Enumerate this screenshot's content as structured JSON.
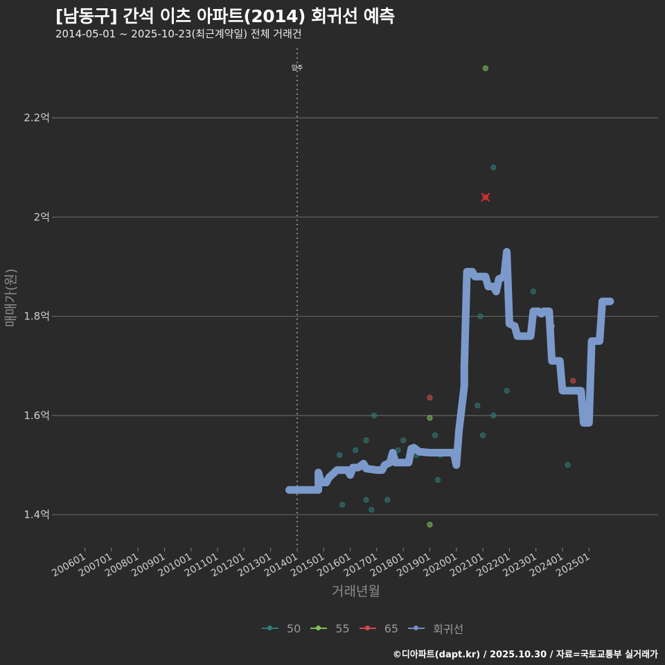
{
  "header": {
    "title": "[남동구] 간석 이츠 아파트(2014) 회귀선 예측",
    "subtitle": "2014-05-01 ~ 2025-10-23(최근계약일) 전체 거래건"
  },
  "annotation": {
    "label": "입주",
    "x_month": "201405"
  },
  "legend": [
    {
      "label": "50",
      "color": "#2f7c78"
    },
    {
      "label": "55",
      "color": "#7fbf5f"
    },
    {
      "label": "65",
      "color": "#d24a4a"
    },
    {
      "label": "회귀선",
      "color": "#6f8fbf"
    }
  ],
  "caption": "©디아파트(dapt.kr) / 2025.10.30 / 자료=국토교통부 실거래가",
  "chart_data": {
    "type": "scatter",
    "title": "[남동구] 간석 이츠 아파트(2014) 회귀선 예측",
    "subtitle": "2014-05-01 ~ 2025-10-23(최근계약일) 전체 거래건",
    "xlabel": "거래년월",
    "ylabel": "매매가(원)",
    "x_ticks": [
      "200601",
      "200701",
      "200801",
      "200901",
      "201001",
      "201101",
      "201201",
      "201301",
      "201401",
      "201501",
      "201601",
      "201701",
      "201801",
      "201901",
      "202001",
      "202101",
      "202201",
      "202301",
      "202401",
      "202501"
    ],
    "y_ticks": [
      "1.4억",
      "1.6억",
      "1.8억",
      "2억",
      "2.2억"
    ],
    "y_tick_values": [
      1.4,
      1.6,
      1.8,
      2.0,
      2.2
    ],
    "ylim": [
      1.34,
      2.32
    ],
    "grid": "horizontal",
    "legend_position": "bottom",
    "vline": {
      "x": "2014.33",
      "label": "입주"
    },
    "series": [
      {
        "name": "50",
        "type": "scatter",
        "color": "#2f7c78",
        "points": [
          [
            2015.6,
            1.52
          ],
          [
            2015.7,
            1.42
          ],
          [
            2016.2,
            1.53
          ],
          [
            2016.6,
            1.55
          ],
          [
            2016.6,
            1.43
          ],
          [
            2016.8,
            1.41
          ],
          [
            2016.9,
            1.6
          ],
          [
            2017.4,
            1.43
          ],
          [
            2017.8,
            1.53
          ],
          [
            2018.0,
            1.55
          ],
          [
            2018.5,
            1.52
          ],
          [
            2019.2,
            1.56
          ],
          [
            2019.3,
            1.47
          ],
          [
            2019.4,
            1.52
          ],
          [
            2020.8,
            1.62
          ],
          [
            2020.9,
            1.8
          ],
          [
            2021.0,
            1.56
          ],
          [
            2021.4,
            2.1
          ],
          [
            2021.4,
            1.6
          ],
          [
            2021.9,
            1.65
          ],
          [
            2022.9,
            1.85
          ],
          [
            2024.2,
            1.5
          ]
        ]
      },
      {
        "name": "55",
        "type": "scatter",
        "color": "#7fbf5f",
        "points": [
          [
            2019.0,
            1.595
          ],
          [
            2019.0,
            1.38
          ],
          [
            2021.1,
            2.3
          ],
          [
            2023.6,
            1.78
          ]
        ]
      },
      {
        "name": "65",
        "type": "scatter",
        "color": "#d24a4a",
        "points": [
          [
            2019.0,
            1.636
          ],
          [
            2021.1,
            2.04
          ],
          [
            2024.4,
            1.67
          ]
        ]
      },
      {
        "name": "회귀선",
        "type": "line",
        "color": "#7b9acb",
        "points": [
          [
            2013.7,
            1.45
          ],
          [
            2014.5,
            1.45
          ],
          [
            2014.8,
            1.45
          ],
          [
            2014.8,
            1.485
          ],
          [
            2014.9,
            1.465
          ],
          [
            2015.1,
            1.465
          ],
          [
            2015.2,
            1.475
          ],
          [
            2015.5,
            1.49
          ],
          [
            2015.9,
            1.49
          ],
          [
            2016.0,
            1.48
          ],
          [
            2016.1,
            1.495
          ],
          [
            2016.3,
            1.495
          ],
          [
            2016.5,
            1.503
          ],
          [
            2016.6,
            1.493
          ],
          [
            2017.0,
            1.49
          ],
          [
            2017.2,
            1.49
          ],
          [
            2017.3,
            1.5
          ],
          [
            2017.5,
            1.505
          ],
          [
            2017.6,
            1.525
          ],
          [
            2017.7,
            1.505
          ],
          [
            2018.2,
            1.505
          ],
          [
            2018.3,
            1.533
          ],
          [
            2018.4,
            1.535
          ],
          [
            2018.6,
            1.527
          ],
          [
            2019.0,
            1.525
          ],
          [
            2019.9,
            1.525
          ],
          [
            2020.0,
            1.5
          ],
          [
            2020.1,
            1.57
          ],
          [
            2020.3,
            1.66
          ],
          [
            2020.3,
            1.7
          ],
          [
            2020.4,
            1.89
          ],
          [
            2020.6,
            1.89
          ],
          [
            2020.7,
            1.88
          ],
          [
            2021.1,
            1.88
          ],
          [
            2021.2,
            1.86
          ],
          [
            2021.4,
            1.86
          ],
          [
            2021.5,
            1.85
          ],
          [
            2021.6,
            1.875
          ],
          [
            2021.8,
            1.88
          ],
          [
            2021.9,
            1.93
          ],
          [
            2022.0,
            1.785
          ],
          [
            2022.2,
            1.78
          ],
          [
            2022.3,
            1.76
          ],
          [
            2022.8,
            1.76
          ],
          [
            2022.9,
            1.81
          ],
          [
            2023.1,
            1.81
          ],
          [
            2023.2,
            1.805
          ],
          [
            2023.3,
            1.81
          ],
          [
            2023.5,
            1.81
          ],
          [
            2023.6,
            1.71
          ],
          [
            2023.9,
            1.71
          ],
          [
            2024.0,
            1.65
          ],
          [
            2024.7,
            1.65
          ],
          [
            2024.8,
            1.585
          ],
          [
            2025.0,
            1.585
          ],
          [
            2025.1,
            1.75
          ],
          [
            2025.4,
            1.75
          ],
          [
            2025.5,
            1.83
          ],
          [
            2025.8,
            1.83
          ]
        ]
      }
    ]
  }
}
